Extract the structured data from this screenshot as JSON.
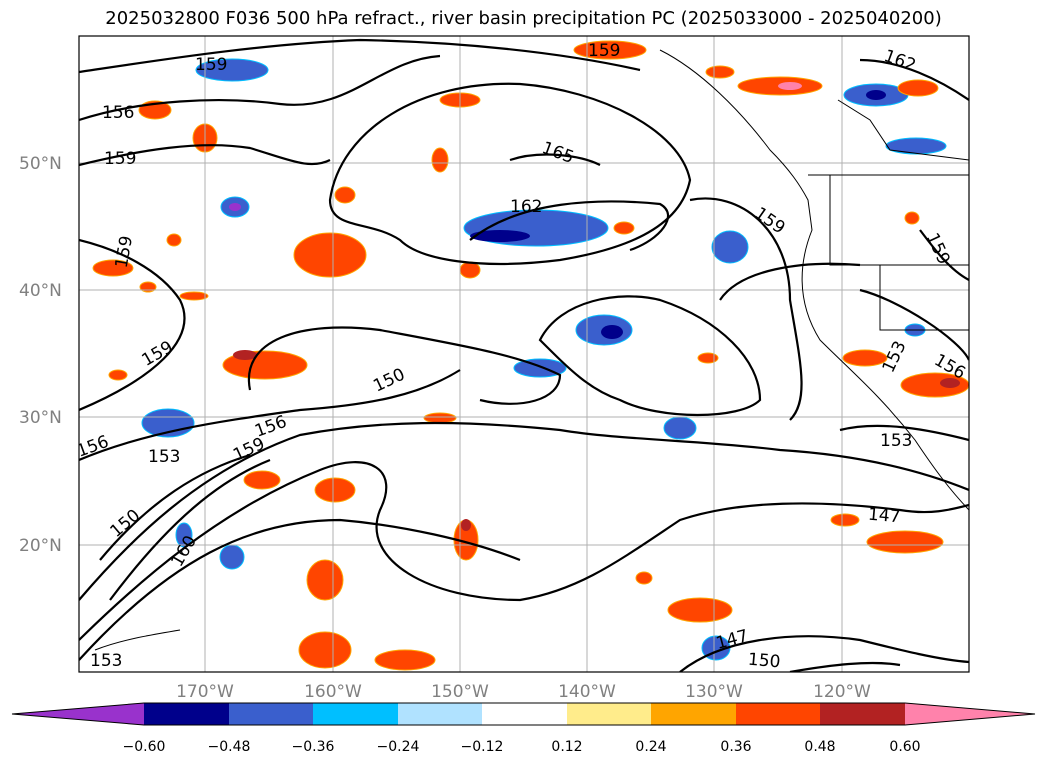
{
  "title": "2025032800 F036 500 hPa refract., river basin precipitation PC (2025033000 - 2025040200)",
  "map": {
    "lat_labels": [
      "50°N",
      "40°N",
      "30°N",
      "20°N"
    ],
    "lon_labels": [
      "170°W",
      "160°W",
      "150°W",
      "140°W",
      "130°W",
      "120°W"
    ],
    "contour_labels": [
      "159",
      "156",
      "159",
      "159",
      "159",
      "150",
      "156",
      "159",
      "156",
      "153",
      "150",
      "160",
      "153",
      "162",
      "165",
      "159",
      "162",
      "159",
      "159",
      "153",
      "156",
      "153",
      "147",
      "147",
      "150"
    ]
  },
  "colorbar": {
    "ticks": [
      "−0.60",
      "−0.48",
      "−0.36",
      "−0.24",
      "−0.12",
      "0.12",
      "0.24",
      "0.36",
      "0.48",
      "0.60"
    ],
    "colors": [
      "#9932cc",
      "#00008b",
      "#3a5fcd",
      "#00bfff",
      "#b0e2ff",
      "#ffffff",
      "#ffec8b",
      "#ffa500",
      "#ff4500",
      "#b22222",
      "#ff82ab"
    ]
  },
  "fill_colors": {
    "neg_deep": "#00008b",
    "neg_mid": "#3a5fcd",
    "neg_light": "#00bfff",
    "neg_pale": "#b0e2ff",
    "pos_pale": "#ffec8b",
    "pos_mid": "#ffa500",
    "pos_strong": "#ff4500",
    "pos_deep": "#b22222",
    "pos_max": "#ff82ab"
  }
}
